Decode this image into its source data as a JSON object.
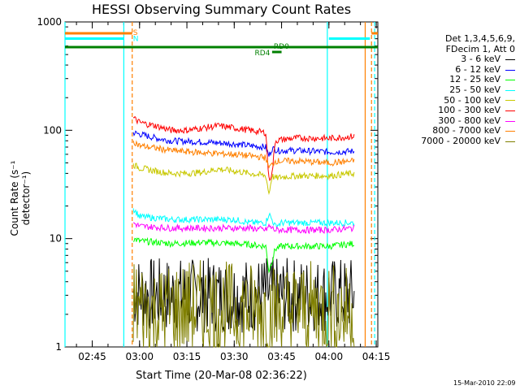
{
  "chart_data": {
    "type": "line",
    "title": "HESSI Observing Summary Count Rates",
    "xlabel": "Start Time (20-Mar-08 02:36:22)",
    "ylabel": "Count Rate (s⁻¹ detector⁻¹)",
    "y_scale": "log",
    "ylim": [
      1,
      1000
    ],
    "y_ticks": [
      1,
      10,
      100,
      1000
    ],
    "y_tick_labels": [
      "1",
      "10",
      "100",
      "1000"
    ],
    "x_ticks": [
      "02:45",
      "03:00",
      "03:15",
      "03:30",
      "03:45",
      "04:00",
      "04:15"
    ],
    "legend_header": [
      "Det 1,3,4,5,6,9,",
      "FDecim 1, Att 0"
    ],
    "legend_position": "right",
    "series": [
      {
        "name": "3 - 6 keV",
        "color": "#000000",
        "x": [
          "02:58",
          "03:05",
          "03:15",
          "03:25",
          "03:35",
          "03:40",
          "03:45",
          "03:55",
          "04:05",
          "04:08"
        ],
        "y": [
          3.2,
          3.0,
          3.0,
          3.0,
          3.0,
          3.1,
          3.0,
          3.0,
          3.0,
          3.0
        ]
      },
      {
        "name": "6 - 12 keV",
        "color": "#0000ff",
        "x": [
          "02:58",
          "03:05",
          "03:10",
          "03:20",
          "03:30",
          "03:35",
          "03:40",
          "03:41",
          "03:42",
          "03:44",
          "03:50",
          "04:00",
          "04:08"
        ],
        "y": [
          95,
          85,
          80,
          78,
          75,
          72,
          70,
          58,
          68,
          65,
          65,
          63,
          64
        ]
      },
      {
        "name": "12 - 25 keV",
        "color": "#00ff00",
        "x": [
          "02:58",
          "03:00",
          "03:10",
          "03:20",
          "03:30",
          "03:35",
          "03:40",
          "03:41",
          "03:43",
          "03:45",
          "03:50",
          "04:00",
          "04:08"
        ],
        "y": [
          10,
          9.5,
          9.0,
          9.2,
          9.0,
          8.8,
          8.5,
          5.0,
          8.0,
          8.5,
          8.5,
          8.5,
          9.0
        ]
      },
      {
        "name": "25 - 50 keV",
        "color": "#00ffff",
        "x": [
          "02:58",
          "03:00",
          "03:10",
          "03:20",
          "03:30",
          "03:35",
          "03:40",
          "03:41",
          "03:43",
          "03:45",
          "03:50",
          "04:00",
          "04:08"
        ],
        "y": [
          19,
          16,
          15,
          15,
          15,
          14,
          14,
          17,
          13,
          14,
          14,
          14,
          14
        ]
      },
      {
        "name": "50 - 100 keV",
        "color": "#c8c800",
        "x": [
          "02:58",
          "03:00",
          "03:05",
          "03:10",
          "03:15",
          "03:20",
          "03:25",
          "03:30",
          "03:35",
          "03:40",
          "03:41",
          "03:42",
          "03:43",
          "03:45",
          "03:50",
          "04:00",
          "04:08"
        ],
        "y": [
          48,
          45,
          42,
          40,
          40,
          41,
          44,
          42,
          40,
          38,
          26,
          38,
          36,
          37,
          38,
          38,
          40
        ]
      },
      {
        "name": "100 - 300 keV",
        "color": "#ff0000",
        "x": [
          "02:58",
          "03:00",
          "03:05",
          "03:10",
          "03:15",
          "03:20",
          "03:25",
          "03:30",
          "03:35",
          "03:40",
          "03:41",
          "03:42",
          "03:43",
          "03:45",
          "03:50",
          "04:00",
          "04:08"
        ],
        "y": [
          130,
          118,
          110,
          100,
          100,
          105,
          110,
          105,
          100,
          95,
          35,
          40,
          80,
          82,
          85,
          84,
          88
        ]
      },
      {
        "name": "300 - 800 keV",
        "color": "#ff00ff",
        "x": [
          "02:58",
          "03:00",
          "03:10",
          "03:20",
          "03:30",
          "03:35",
          "03:40",
          "03:41",
          "03:43",
          "03:45",
          "03:50",
          "04:00",
          "04:08"
        ],
        "y": [
          14,
          13,
          12.5,
          12.5,
          12.5,
          12.5,
          12,
          13,
          12,
          12,
          12,
          12,
          12.5
        ]
      },
      {
        "name": "800 - 7000 keV",
        "color": "#ff8000",
        "x": [
          "02:58",
          "03:00",
          "03:10",
          "03:20",
          "03:30",
          "03:35",
          "03:40",
          "03:41",
          "03:43",
          "03:45",
          "03:50",
          "04:00",
          "04:08"
        ],
        "y": [
          80,
          72,
          65,
          62,
          60,
          58,
          56,
          45,
          52,
          52,
          52,
          50,
          52
        ]
      },
      {
        "name": "7000 - 20000 keV",
        "color": "#808000",
        "x": [
          "02:58",
          "03:00",
          "03:05",
          "03:10",
          "03:20",
          "03:30",
          "03:40",
          "03:45",
          "03:50",
          "04:00",
          "04:05",
          "04:08"
        ],
        "y": [
          2.5,
          2.3,
          2.0,
          2.2,
          2.3,
          2.2,
          2.2,
          2.1,
          2.2,
          2.2,
          2.0,
          2.3
        ]
      }
    ],
    "flag_bars": [
      {
        "label": "S",
        "color": "#ff8000",
        "segments": [
          [
            "02:36:22",
            "02:57:40"
          ],
          [
            "04:13:30",
            "04:15:30"
          ]
        ]
      },
      {
        "label": "N",
        "color": "#00ffff",
        "segments": [
          [
            "02:36:22",
            "02:55:00"
          ],
          [
            "04:00:00",
            "04:13:00"
          ]
        ]
      },
      {
        "label": "RD0",
        "color": "#008000",
        "segments": [
          [
            "02:36:22",
            "04:15:30"
          ]
        ]
      },
      {
        "label": "RD4",
        "color": "#008000",
        "segments": [
          [
            "03:42:00",
            "03:45:00"
          ]
        ]
      }
    ],
    "vertical_markers": [
      {
        "time": "02:36:22",
        "color": "#00ffff",
        "style": "solid"
      },
      {
        "time": "02:55:00",
        "color": "#00ffff",
        "style": "solid"
      },
      {
        "time": "02:57:40",
        "color": "#ff8000",
        "style": "dashed"
      },
      {
        "time": "03:59:30",
        "color": "#00ffff",
        "style": "solid"
      },
      {
        "time": "04:11:30",
        "color": "#ff8000",
        "style": "solid"
      },
      {
        "time": "04:13:30",
        "color": "#ff8000",
        "style": "dashed"
      },
      {
        "time": "04:14:30",
        "color": "#00ffff",
        "style": "dashed"
      }
    ],
    "footer": "15-Mar-2010 22:09"
  }
}
